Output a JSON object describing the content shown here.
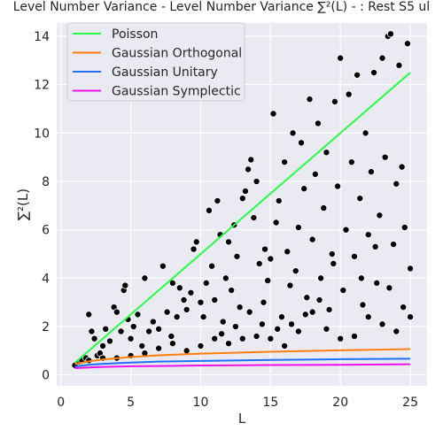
{
  "chart_data": {
    "type": "scatter",
    "title": "Level Number Variance - Level Number Variance ∑²(L) - : Rest S5 ul",
    "xlabel": "L",
    "ylabel": "∑²(L)",
    "xlim": [
      -0.3,
      26.2
    ],
    "ylim": [
      -0.45,
      14.55
    ],
    "xticks": [
      0,
      5,
      10,
      15,
      20,
      25
    ],
    "yticks": [
      0,
      2,
      4,
      6,
      8,
      10,
      12,
      14
    ],
    "grid": true,
    "legend_position": "top-left",
    "colors": {
      "background": "#EAEAF2",
      "grid": "#FFFFFF",
      "points": "#000000",
      "poisson": "#22FF44",
      "orthogonal": "#FF7F0E",
      "unitary": "#1F6FFF",
      "symplectic": "#EE11EE"
    },
    "legend": [
      {
        "label": "Poisson",
        "color": "#22FF44"
      },
      {
        "label": "Gaussian Orthogonal",
        "color": "#FF7F0E"
      },
      {
        "label": "Gaussian Unitary",
        "color": "#1F6FFF"
      },
      {
        "label": "Gaussian Symplectic",
        "color": "#EE11EE"
      }
    ],
    "series": [
      {
        "name": "Poisson",
        "x": [
          1,
          25
        ],
        "y": [
          0.5,
          12.5
        ]
      },
      {
        "name": "Gaussian Orthogonal",
        "x": [
          1,
          2,
          3,
          5,
          7,
          10,
          15,
          20,
          25
        ],
        "y": [
          0.45,
          0.56,
          0.64,
          0.74,
          0.81,
          0.88,
          0.96,
          1.02,
          1.07
        ]
      },
      {
        "name": "Gaussian Unitary",
        "x": [
          1,
          2,
          3,
          5,
          7,
          10,
          15,
          20,
          25
        ],
        "y": [
          0.35,
          0.42,
          0.46,
          0.51,
          0.55,
          0.58,
          0.62,
          0.65,
          0.67
        ]
      },
      {
        "name": "Gaussian Symplectic",
        "x": [
          1,
          2,
          3,
          5,
          7,
          10,
          15,
          20,
          25
        ],
        "y": [
          0.28,
          0.31,
          0.33,
          0.36,
          0.37,
          0.39,
          0.41,
          0.42,
          0.44
        ]
      }
    ],
    "points": [
      [
        1.0,
        0.4
      ],
      [
        1.3,
        0.55
      ],
      [
        1.5,
        0.6
      ],
      [
        1.8,
        0.7
      ],
      [
        2.0,
        2.5
      ],
      [
        2.2,
        1.8
      ],
      [
        2.4,
        1.5
      ],
      [
        2.6,
        0.8
      ],
      [
        2.8,
        0.9
      ],
      [
        3.0,
        1.2
      ],
      [
        3.2,
        1.9
      ],
      [
        3.5,
        1.4
      ],
      [
        3.8,
        2.8
      ],
      [
        4.0,
        2.6
      ],
      [
        4.3,
        1.8
      ],
      [
        4.5,
        3.5
      ],
      [
        4.6,
        3.7
      ],
      [
        4.8,
        2.3
      ],
      [
        5.0,
        1.5
      ],
      [
        5.2,
        2.0
      ],
      [
        5.5,
        2.5
      ],
      [
        5.8,
        1.2
      ],
      [
        6.0,
        4.0
      ],
      [
        6.3,
        1.8
      ],
      [
        6.6,
        2.2
      ],
      [
        7.0,
        1.9
      ],
      [
        7.3,
        4.5
      ],
      [
        7.6,
        2.6
      ],
      [
        7.9,
        1.6
      ],
      [
        8.0,
        3.8
      ],
      [
        8.3,
        2.4
      ],
      [
        8.5,
        3.6
      ],
      [
        8.8,
        3.1
      ],
      [
        9.0,
        2.7
      ],
      [
        9.3,
        3.4
      ],
      [
        9.5,
        5.2
      ],
      [
        9.7,
        5.5
      ],
      [
        10.0,
        3.0
      ],
      [
        10.2,
        2.4
      ],
      [
        10.4,
        3.8
      ],
      [
        10.6,
        6.8
      ],
      [
        10.8,
        4.5
      ],
      [
        11.0,
        3.1
      ],
      [
        11.2,
        7.2
      ],
      [
        11.4,
        5.8
      ],
      [
        11.6,
        2.2
      ],
      [
        11.8,
        4.0
      ],
      [
        12.0,
        5.5
      ],
      [
        12.2,
        3.5
      ],
      [
        12.4,
        6.2
      ],
      [
        12.6,
        4.9
      ],
      [
        12.8,
        2.8
      ],
      [
        13.0,
        7.3
      ],
      [
        13.2,
        7.6
      ],
      [
        13.4,
        8.5
      ],
      [
        13.6,
        8.9
      ],
      [
        13.8,
        6.5
      ],
      [
        14.0,
        8.0
      ],
      [
        14.2,
        4.6
      ],
      [
        14.4,
        2.1
      ],
      [
        14.6,
        5.2
      ],
      [
        14.8,
        3.9
      ],
      [
        15.0,
        4.8
      ],
      [
        15.2,
        10.8
      ],
      [
        15.4,
        6.3
      ],
      [
        15.6,
        7.2
      ],
      [
        15.8,
        2.4
      ],
      [
        16.0,
        8.8
      ],
      [
        16.2,
        5.1
      ],
      [
        16.4,
        3.7
      ],
      [
        16.6,
        10.0
      ],
      [
        16.8,
        4.3
      ],
      [
        17.0,
        6.1
      ],
      [
        17.2,
        9.6
      ],
      [
        17.4,
        7.7
      ],
      [
        17.6,
        3.2
      ],
      [
        17.8,
        11.4
      ],
      [
        18.0,
        5.6
      ],
      [
        18.2,
        8.3
      ],
      [
        18.4,
        10.4
      ],
      [
        18.6,
        4.0
      ],
      [
        18.8,
        6.9
      ],
      [
        19.0,
        9.2
      ],
      [
        19.2,
        2.7
      ],
      [
        19.4,
        5.0
      ],
      [
        19.6,
        11.3
      ],
      [
        19.8,
        7.8
      ],
      [
        20.0,
        13.1
      ],
      [
        20.2,
        3.5
      ],
      [
        20.4,
        6.0
      ],
      [
        20.6,
        11.6
      ],
      [
        20.8,
        8.8
      ],
      [
        21.0,
        4.9
      ],
      [
        21.2,
        12.4
      ],
      [
        21.4,
        7.3
      ],
      [
        21.6,
        2.9
      ],
      [
        21.8,
        10.0
      ],
      [
        22.0,
        5.8
      ],
      [
        22.2,
        8.4
      ],
      [
        22.4,
        12.5
      ],
      [
        22.6,
        3.8
      ],
      [
        22.8,
        6.6
      ],
      [
        23.0,
        13.1
      ],
      [
        23.2,
        9.0
      ],
      [
        23.4,
        14.0
      ],
      [
        23.6,
        14.1
      ],
      [
        23.8,
        5.4
      ],
      [
        24.0,
        7.9
      ],
      [
        24.2,
        12.8
      ],
      [
        24.4,
        8.6
      ],
      [
        24.6,
        6.1
      ],
      [
        24.8,
        13.7
      ],
      [
        25.0,
        4.4
      ],
      [
        15.0,
        1.5
      ],
      [
        16.0,
        1.2
      ],
      [
        17.0,
        1.8
      ],
      [
        18.0,
        2.6
      ],
      [
        19.0,
        1.9
      ],
      [
        20.0,
        1.5
      ],
      [
        21.0,
        1.6
      ],
      [
        22.0,
        2.4
      ],
      [
        23.0,
        2.1
      ],
      [
        24.0,
        1.8
      ],
      [
        25.0,
        2.4
      ],
      [
        12.0,
        1.3
      ],
      [
        13.0,
        1.5
      ],
      [
        14.0,
        1.6
      ],
      [
        10.0,
        1.2
      ],
      [
        11.0,
        1.5
      ],
      [
        9.0,
        1.0
      ],
      [
        8.0,
        1.3
      ],
      [
        7.0,
        1.1
      ],
      [
        6.0,
        0.9
      ],
      [
        5.0,
        0.8
      ],
      [
        4.0,
        0.7
      ],
      [
        3.0,
        0.7
      ],
      [
        2.0,
        0.6
      ],
      [
        18.5,
        3.1
      ],
      [
        19.5,
        4.6
      ],
      [
        21.5,
        4.0
      ],
      [
        22.5,
        5.3
      ],
      [
        23.5,
        3.6
      ],
      [
        24.5,
        2.8
      ],
      [
        16.5,
        2.1
      ],
      [
        17.5,
        2.5
      ],
      [
        15.5,
        1.9
      ],
      [
        14.5,
        3.0
      ],
      [
        13.5,
        2.6
      ],
      [
        12.5,
        2.0
      ],
      [
        11.5,
        1.7
      ]
    ]
  }
}
